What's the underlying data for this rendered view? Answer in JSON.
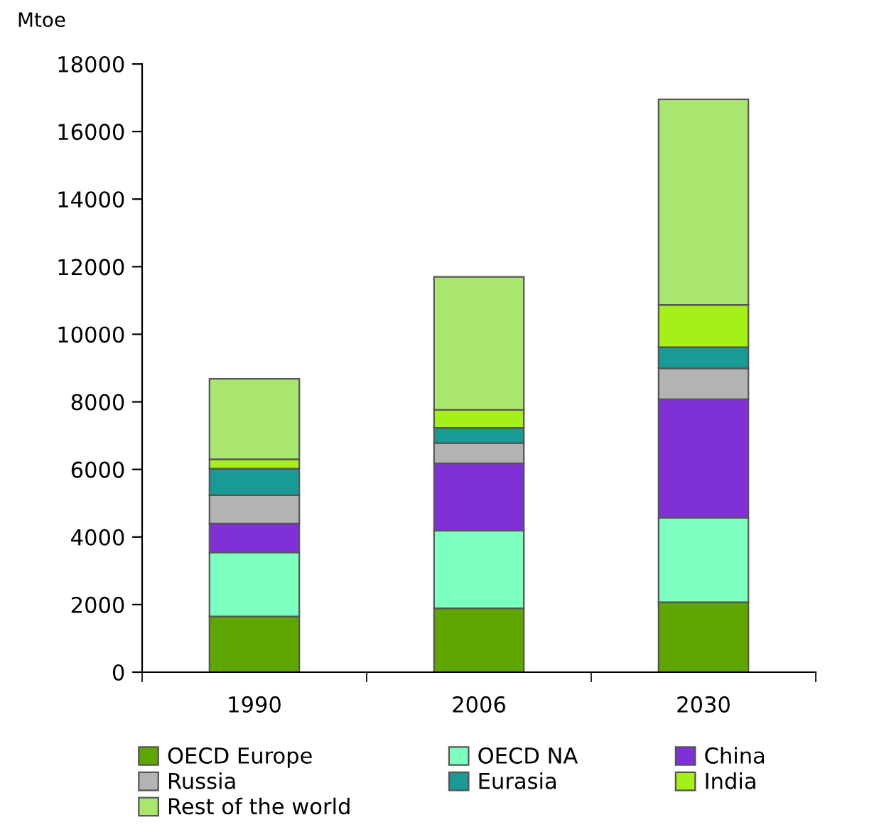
{
  "chart_data": {
    "type": "bar",
    "stacked": true,
    "ylabel": "Mtoe",
    "categories": [
      "1990",
      "2006",
      "2030"
    ],
    "series": [
      {
        "name": "OECD Europe",
        "color": "#5fa600",
        "values": [
          1650,
          1890,
          2070
        ]
      },
      {
        "name": "OECD NA",
        "color": "#7dffbf",
        "values": [
          1890,
          2300,
          2500
        ]
      },
      {
        "name": "China",
        "color": "#7f30d6",
        "values": [
          860,
          1990,
          3510
        ]
      },
      {
        "name": "Russia",
        "color": "#b3b3b3",
        "values": [
          840,
          600,
          910
        ]
      },
      {
        "name": "Eurasia",
        "color": "#1a9a94",
        "values": [
          780,
          450,
          630
        ]
      },
      {
        "name": "India",
        "color": "#a6f019",
        "values": [
          280,
          530,
          1250
        ]
      },
      {
        "name": "Rest of the world",
        "color": "#a8e670",
        "values": [
          2380,
          3940,
          6080
        ]
      }
    ],
    "ylim": [
      0,
      18000
    ],
    "yticks": [
      0,
      2000,
      4000,
      6000,
      8000,
      10000,
      12000,
      14000,
      16000,
      18000
    ],
    "grid": false,
    "legend": "bottom"
  }
}
